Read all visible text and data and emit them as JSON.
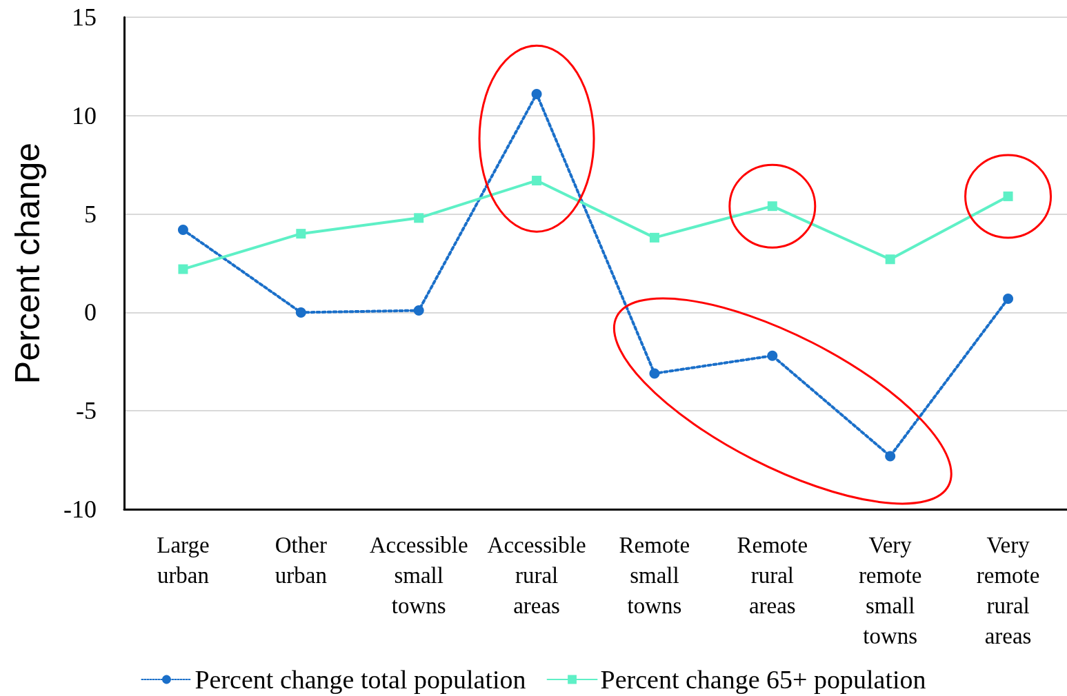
{
  "chart_data": {
    "type": "line",
    "ylabel": "Percent change",
    "categories": [
      "Large urban",
      "Other urban",
      "Accessible small towns",
      "Accessible rural areas",
      "Remote small towns",
      "Remote rural areas",
      "Very remote small towns",
      "Very remote rural areas"
    ],
    "series": [
      {
        "name": "Percent change total population",
        "color": "#1a6fc9",
        "marker": "circle",
        "line_style": "dotted",
        "values": [
          4.2,
          0.0,
          0.1,
          11.1,
          -3.1,
          -2.2,
          -7.3,
          0.7
        ]
      },
      {
        "name": "Percent change 65+ population",
        "color": "#5ef0c6",
        "marker": "square",
        "line_style": "solid",
        "values": [
          2.2,
          4.0,
          4.8,
          6.7,
          3.8,
          5.4,
          2.7,
          5.9
        ]
      }
    ],
    "ylim": [
      -10,
      15
    ],
    "yticks": [
      -10,
      -5,
      0,
      5,
      10,
      15
    ],
    "grid": "y",
    "legend": "bottom"
  }
}
